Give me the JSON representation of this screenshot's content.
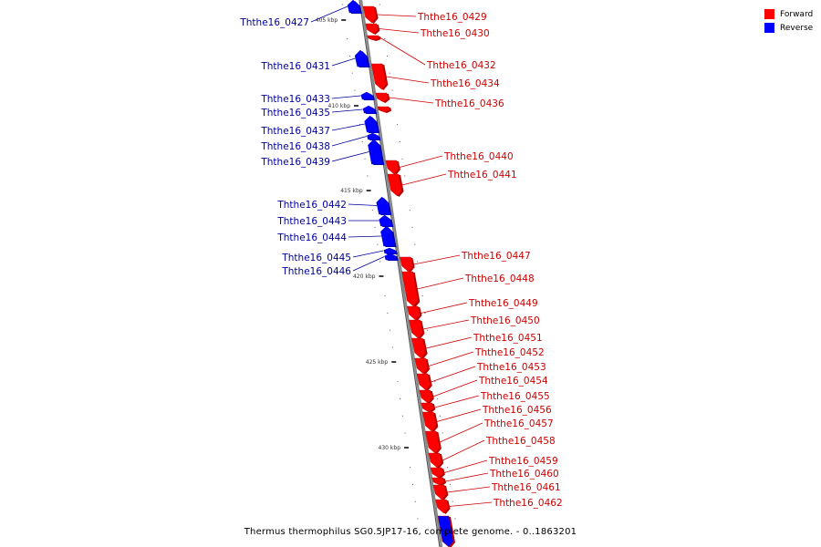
{
  "caption": "Thermus thermophilus SG0.5JP17-16, complete genome. - 0..1863201",
  "legend": [
    {
      "label": "Forward",
      "color": "#ff0000"
    },
    {
      "label": "Reverse",
      "color": "#0000ff"
    }
  ],
  "colors": {
    "forward": "#ff0000",
    "reverse": "#0000ff",
    "backbone": "#888888",
    "label_forward": "#cc0000",
    "label_reverse": "#000099"
  },
  "tick_labels": [
    "405 kbp",
    "410 kbp",
    "415 kbp",
    "420 kbp",
    "425 kbp",
    "430 kbp"
  ],
  "reverse_genes": [
    "Ththe16_0427",
    "Ththe16_0431",
    "Ththe16_0433",
    "Ththe16_0435",
    "Ththe16_0437",
    "Ththe16_0438",
    "Ththe16_0439",
    "Ththe16_0442",
    "Ththe16_0443",
    "Ththe16_0444",
    "Ththe16_0445",
    "Ththe16_0446"
  ],
  "forward_genes": [
    "Ththe16_0429",
    "Ththe16_0430",
    "Ththe16_0432",
    "Ththe16_0434",
    "Ththe16_0436",
    "Ththe16_0440",
    "Ththe16_0441",
    "Ththe16_0447",
    "Ththe16_0448",
    "Ththe16_0449",
    "Ththe16_0450",
    "Ththe16_0451",
    "Ththe16_0452",
    "Ththe16_0453",
    "Ththe16_0454",
    "Ththe16_0455",
    "Ththe16_0456",
    "Ththe16_0457",
    "Ththe16_0458",
    "Ththe16_0459",
    "Ththe16_0460",
    "Ththe16_0461",
    "Ththe16_0462"
  ]
}
